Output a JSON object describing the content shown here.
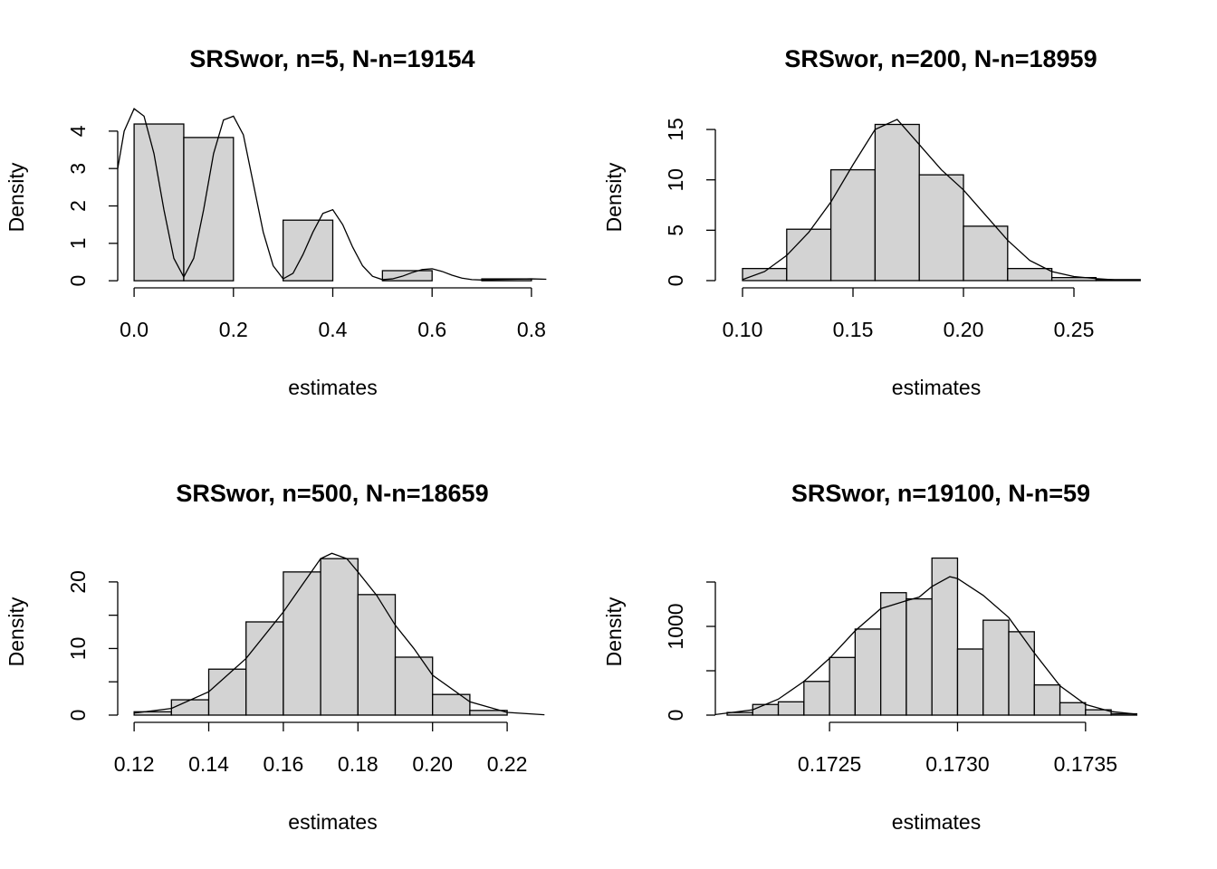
{
  "chart_data": [
    {
      "type": "histogram",
      "title": "SRSwor, n=5, N-n=19154",
      "xlabel": "estimates",
      "ylabel": "Density",
      "color": "#d3d3d3",
      "bins": [
        0,
        0.1,
        0.2,
        0.3,
        0.4,
        0.5,
        0.6,
        0.7,
        0.8
      ],
      "values": [
        4.19,
        3.83,
        0,
        1.62,
        0,
        0.27,
        0,
        0.05
      ],
      "density": {
        "x": [
          -0.033,
          -0.02,
          0,
          0.02,
          0.04,
          0.06,
          0.08,
          0.1,
          0.12,
          0.14,
          0.16,
          0.18,
          0.2,
          0.22,
          0.24,
          0.26,
          0.28,
          0.3,
          0.32,
          0.34,
          0.36,
          0.38,
          0.4,
          0.42,
          0.44,
          0.46,
          0.48,
          0.5,
          0.52,
          0.54,
          0.56,
          0.58,
          0.6,
          0.62,
          0.64,
          0.66,
          0.68,
          0.7,
          0.72,
          0.76,
          0.8,
          0.83
        ],
        "y": [
          3.0,
          4.0,
          4.6,
          4.4,
          3.4,
          1.9,
          0.6,
          0.1,
          0.6,
          1.9,
          3.4,
          4.3,
          4.4,
          3.9,
          2.6,
          1.3,
          0.4,
          0.05,
          0.2,
          0.7,
          1.3,
          1.8,
          1.9,
          1.5,
          0.9,
          0.4,
          0.12,
          0.03,
          0.05,
          0.12,
          0.22,
          0.3,
          0.32,
          0.25,
          0.15,
          0.07,
          0.03,
          0.02,
          0.03,
          0.04,
          0.05,
          0.04
        ]
      },
      "xlim": [
        -0.033,
        0.833
      ],
      "ylim": [
        -0.19,
        4.65
      ],
      "xticks": [
        {
          "value": 0,
          "label": "0.0"
        },
        0.2,
        0.4,
        0.6,
        0.8
      ],
      "yticks": [
        0,
        1,
        2,
        3,
        4
      ]
    },
    {
      "type": "histogram",
      "title": "SRSwor, n=200, N-n=18959",
      "xlabel": "estimates",
      "ylabel": "Density",
      "color": "#d3d3d3",
      "bins": [
        0.1,
        0.12,
        0.14,
        0.16,
        0.18,
        0.2,
        0.22,
        0.24,
        0.26,
        0.28
      ],
      "values": [
        1.2,
        5.1,
        11.0,
        15.5,
        10.5,
        5.4,
        1.2,
        0.3,
        0.1
      ],
      "density": {
        "x": [
          0.1,
          0.11,
          0.12,
          0.13,
          0.14,
          0.15,
          0.16,
          0.17,
          0.18,
          0.19,
          0.2,
          0.21,
          0.22,
          0.23,
          0.24,
          0.25,
          0.26,
          0.27,
          0.28
        ],
        "y": [
          0.1,
          0.9,
          2.5,
          4.8,
          7.8,
          11.5,
          15.0,
          16.0,
          13.5,
          11.0,
          9.0,
          6.5,
          4.0,
          2.0,
          0.9,
          0.4,
          0.2,
          0.05,
          0.02
        ]
      },
      "xlim": [
        0.0877,
        0.2877
      ],
      "ylim": [
        -0.72,
        17.25
      ],
      "xticks": [
        {
          "value": 0.1,
          "label": "0.10"
        },
        0.15,
        {
          "value": 0.2,
          "label": "0.20"
        },
        0.25
      ],
      "yticks": [
        0,
        5,
        10,
        15
      ]
    },
    {
      "type": "histogram",
      "title": "SRSwor, n=500, N-n=18659",
      "xlabel": "estimates",
      "ylabel": "Density",
      "color": "#d3d3d3",
      "bins": [
        0.12,
        0.13,
        0.14,
        0.15,
        0.16,
        0.17,
        0.18,
        0.19,
        0.2,
        0.21,
        0.22
      ],
      "values": [
        0.5,
        2.3,
        6.9,
        14.0,
        21.5,
        23.5,
        18.1,
        8.7,
        3.1,
        0.7
      ],
      "density": {
        "x": [
          0.12,
          0.13,
          0.14,
          0.15,
          0.16,
          0.165,
          0.17,
          0.173,
          0.177,
          0.18,
          0.185,
          0.19,
          0.195,
          0.2,
          0.21,
          0.22,
          0.23
        ],
        "y": [
          0.3,
          1.0,
          3.5,
          8.5,
          15.5,
          19.5,
          23.5,
          24.3,
          23.5,
          21.5,
          18,
          13.5,
          10,
          6.0,
          2.0,
          0.4,
          0.05
        ]
      },
      "xlim": [
        0.1156,
        0.2309
      ],
      "ylim": [
        -1.09,
        26.1
      ],
      "xticks": [
        0.12,
        0.14,
        0.16,
        0.18,
        {
          "value": 0.2,
          "label": "0.20"
        },
        0.22
      ],
      "yticks": [
        0,
        {
          "value": 5,
          "label": null
        },
        10,
        {
          "value": 15,
          "label": null
        },
        20
      ]
    },
    {
      "type": "histogram",
      "title": "SRSwor, n=19100, N-n=59",
      "xlabel": "estimates",
      "ylabel": "Density",
      "color": "#d3d3d3",
      "bins": [
        0.1721,
        0.1722,
        0.1723,
        0.1724,
        0.1725,
        0.1726,
        0.1727,
        0.1728,
        0.1729,
        0.173,
        0.1731,
        0.1732,
        0.1733,
        0.1734,
        0.1735,
        0.1736,
        0.1737
      ],
      "values": [
        30,
        120,
        150,
        380,
        650,
        970,
        1380,
        1310,
        1770,
        745,
        1070,
        940,
        340,
        140,
        60,
        15
      ],
      "density": {
        "x": [
          0.17205,
          0.1722,
          0.1723,
          0.1724,
          0.1725,
          0.1726,
          0.1727,
          0.1728,
          0.17285,
          0.1729,
          0.17297,
          0.173,
          0.1731,
          0.1732,
          0.1733,
          0.1734,
          0.1735,
          0.1736,
          0.1737
        ],
        "y": [
          5,
          60,
          180,
          380,
          640,
          950,
          1200,
          1290,
          1330,
          1450,
          1560,
          1540,
          1350,
          1100,
          700,
          330,
          120,
          40,
          10
        ]
      },
      "xlim": [
        0.172054,
        0.17378
      ],
      "ylim": [
        -81.6,
        1959
      ],
      "xticks": [
        0.1725,
        {
          "value": 0.173,
          "label": "0.1730"
        },
        0.1735
      ],
      "yticks": [
        0,
        {
          "value": 500,
          "label": null
        },
        1000,
        {
          "value": 1500,
          "label": null
        }
      ]
    }
  ]
}
